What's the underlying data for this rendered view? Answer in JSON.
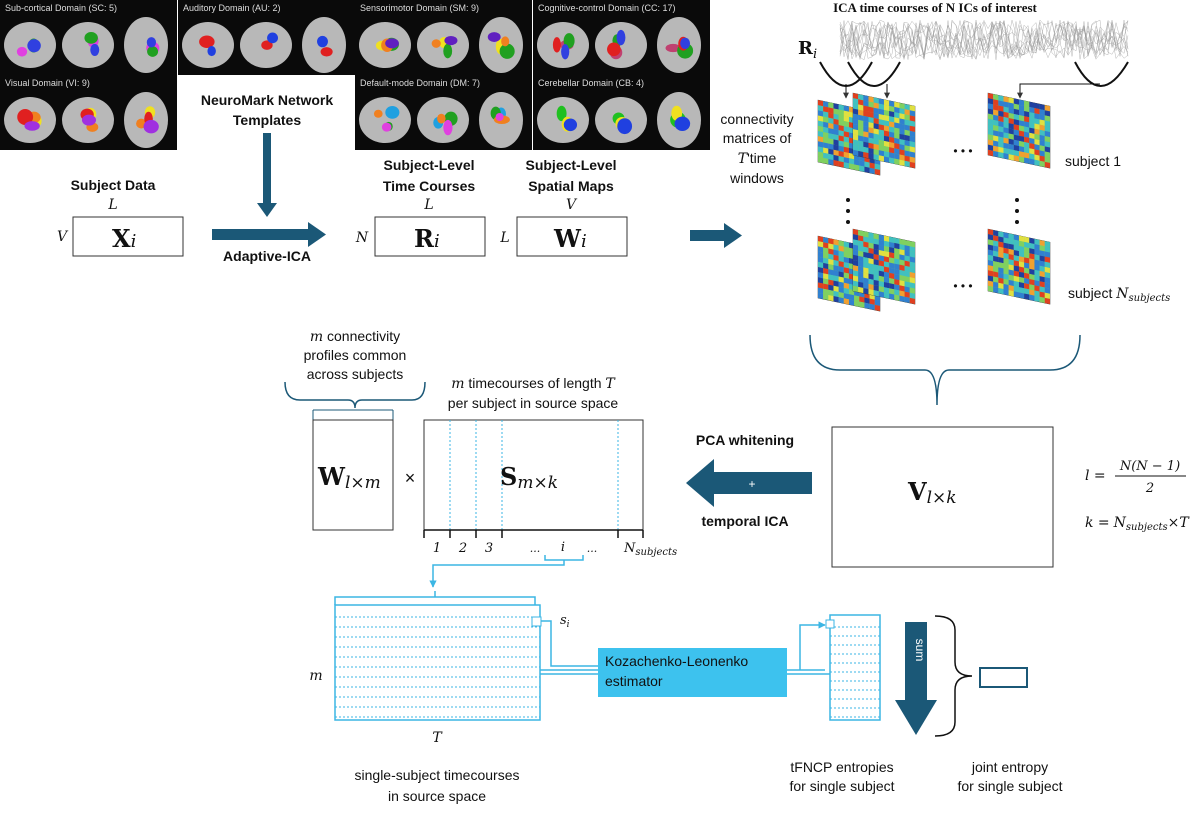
{
  "brain_panels": [
    {
      "title": "Sub-cortical Domain (SC: 5)",
      "colors": [
        "#e040e0",
        "#20a020",
        "#3040e0"
      ]
    },
    {
      "title": "Auditory Domain (AU: 2)",
      "colors": [
        "#e02020",
        "#2040e0"
      ]
    },
    {
      "title": "Sensorimotor Domain (SM: 9)",
      "colors": [
        "#f0e020",
        "#20a020",
        "#f08020",
        "#6020c0"
      ]
    },
    {
      "title": "Cognitive-control Domain (CC: 17)",
      "colors": [
        "#c04070",
        "#20a020",
        "#e02020",
        "#3040e0"
      ]
    },
    {
      "title": "Visual Domain (VI: 9)",
      "colors": [
        "#f0e020",
        "#f08020",
        "#e02020",
        "#a030e0"
      ]
    },
    {
      "title": "Default-mode Domain (DM: 7)",
      "colors": [
        "#20a0e0",
        "#20a020",
        "#f08020",
        "#e040e0"
      ]
    },
    {
      "title": "Cerebellar Domain (CB: 4)",
      "colors": [
        "#20c020",
        "#f0e020",
        "#2040e0"
      ]
    }
  ],
  "templates": {
    "line1": "NeuroMark Network",
    "line2": "Templates"
  },
  "subject_data": {
    "label": "Subject Data",
    "cols": "L",
    "rows": "V",
    "matrix": "X",
    "sub": "i"
  },
  "adaptive_ica": "Adaptive-ICA",
  "time_courses": {
    "line1": "Subject-Level",
    "line2": "Time Courses",
    "cols": "L",
    "rows": "N",
    "matrix": "R",
    "sub": "i"
  },
  "spatial_maps": {
    "line1": "Subject-Level",
    "line2": "Spatial Maps",
    "cols": "V",
    "rows": "L",
    "matrix": "W",
    "sub": "i"
  },
  "ica_title": "ICA time courses of N ICs of interest",
  "ica_matrix": {
    "matrix": "R",
    "sub": "i"
  },
  "connectivity": {
    "line1": "connectivity",
    "line2": "matrices of",
    "line3a": "T",
    "line3b": "'time",
    "line4": "windows"
  },
  "subject1": "subject 1",
  "subjectN": {
    "text": "subject ",
    "var": "N",
    "sub": "subjects"
  },
  "ellipsis": "• • •",
  "V_matrix": {
    "matrix": "V",
    "sub": "l×k"
  },
  "formula_l": {
    "lhs": "l =",
    "num": "N(N − 1)",
    "den": "2"
  },
  "formula_k": {
    "lhs": "k =",
    "rhs": "N",
    "sub": "subjects",
    "tail": "×T"
  },
  "pca_whitening": "PCA whitening",
  "temporal_ica": "temporal ICA",
  "plus": "+",
  "W_matrix": {
    "matrix": "W",
    "sub": "l×m"
  },
  "times": "×",
  "S_matrix": {
    "matrix": "S",
    "sub": "m×k"
  },
  "profiles": {
    "line1a": "m",
    "line1b": " connectivity",
    "line2": "profiles common",
    "line3": "across subjects"
  },
  "timecourses": {
    "line1a": "m",
    "line1b": " timecourses of length ",
    "line1c": "T",
    "line2": "per subject in source space"
  },
  "segments": [
    "1",
    "2",
    "3",
    "...",
    "i",
    "..."
  ],
  "segment_last": {
    "var": "N",
    "sub": "subjects"
  },
  "single_matrix": {
    "rows": "m",
    "cols": "T",
    "row_label": "s",
    "row_sub": "i"
  },
  "kl_estimator": {
    "line1": "Kozachenko-Leonenko",
    "line2": "estimator"
  },
  "sum": "sum",
  "captions": {
    "single_subject": [
      "single-subject timecourses",
      "in source space"
    ],
    "tfncp": [
      "tFNCP entropies",
      "for single subject"
    ],
    "joint": [
      "joint entropy",
      "for single subject"
    ]
  },
  "colors": {
    "accent_dark": "#1b5877",
    "accent_cyan": "#3bb6e4",
    "kl_box": "#3dc2ee"
  }
}
